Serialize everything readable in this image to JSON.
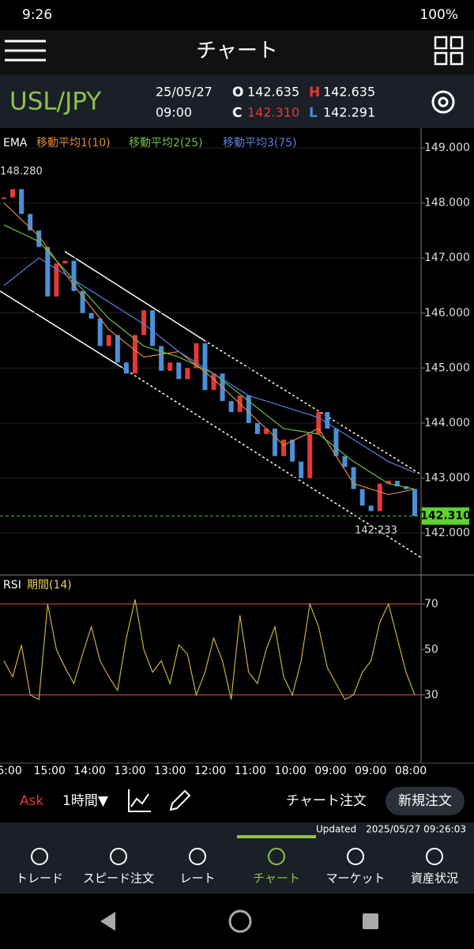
{
  "status_bar": {
    "time": "9:26",
    "battery": "100%"
  },
  "header": {
    "title": "チャート"
  },
  "quote": {
    "symbol": "USL/JPY",
    "date": "25/05/27",
    "time": "09:00",
    "open": {
      "label": "O",
      "value": "142.635"
    },
    "high": {
      "label": "H",
      "value": "142.635"
    },
    "close": {
      "label": "C",
      "value": "142.310"
    },
    "low": {
      "label": "L",
      "value": "142.291"
    }
  },
  "chart_data": [
    {
      "type": "candlestick",
      "title": "EMA",
      "up_color": "#e53935",
      "down_color": "#4a90d9",
      "closes": [
        148.1,
        148.25,
        147.8,
        147.5,
        147.2,
        146.3,
        146.9,
        146.95,
        146.4,
        146.0,
        145.9,
        145.4,
        145.6,
        145.1,
        144.9,
        145.6,
        146.05,
        145.4,
        144.95,
        145.1,
        144.8,
        145.0,
        145.45,
        144.6,
        144.9,
        144.4,
        144.2,
        144.5,
        144.0,
        143.8,
        143.9,
        143.4,
        143.7,
        143.3,
        143.0,
        143.8,
        144.2,
        143.9,
        143.4,
        143.2,
        142.8,
        142.5,
        142.4,
        142.9,
        142.95,
        142.85,
        142.8,
        142.31
      ],
      "series": [
        {
          "name": "移動平均1(10)",
          "color": "#e0893a",
          "x": [
            0,
            4,
            8,
            12,
            16,
            20,
            24,
            28,
            32,
            36,
            40,
            44,
            47
          ],
          "values": [
            148.0,
            147.4,
            146.5,
            145.7,
            145.2,
            145.3,
            144.8,
            144.2,
            143.6,
            143.9,
            142.9,
            142.7,
            142.8
          ]
        },
        {
          "name": "移動平均2(25)",
          "color": "#6cbf4a",
          "x": [
            0,
            4,
            8,
            12,
            16,
            20,
            24,
            28,
            32,
            36,
            40,
            44,
            47
          ],
          "values": [
            147.6,
            147.3,
            146.6,
            145.9,
            145.4,
            145.2,
            144.9,
            144.4,
            143.9,
            143.8,
            143.3,
            142.9,
            142.8
          ]
        },
        {
          "name": "移動平均3(75)",
          "color": "#5b7fe0",
          "x": [
            0,
            4,
            8,
            12,
            16,
            20,
            24,
            28,
            32,
            36,
            40,
            44,
            47
          ],
          "values": [
            146.5,
            147.0,
            146.6,
            146.2,
            145.8,
            145.3,
            144.9,
            144.5,
            144.3,
            144.1,
            143.7,
            143.3,
            143.1
          ]
        }
      ],
      "ylim": [
        141.24,
        149.36
      ],
      "yticks": [
        {
          "value": 142,
          "label": "142.000"
        },
        {
          "value": 143,
          "label": "143.000"
        },
        {
          "value": 144,
          "label": "144.000"
        },
        {
          "value": 145,
          "label": "145.000"
        },
        {
          "value": 146,
          "label": "146.000"
        },
        {
          "value": 147,
          "label": "147.000"
        },
        {
          "value": 148,
          "label": "148.000"
        },
        {
          "value": 149,
          "label": "149.000"
        }
      ],
      "high_label": {
        "value": 148.28,
        "label": "148.280"
      },
      "low_label": {
        "value": 142.233,
        "label": "142.233"
      },
      "last_price": {
        "value": 142.31,
        "label": "142.310"
      },
      "x_labels": [
        "6:00",
        "15:00",
        "14:00",
        "13:00",
        "13:00",
        "12:00",
        "11:00",
        "10:00",
        "09:00",
        "09:00",
        "08:00"
      ]
    },
    {
      "type": "line",
      "title": "RSI",
      "subtitle": "期間(14)",
      "color": "#c8b432",
      "values": [
        45,
        38,
        52,
        30,
        28,
        70,
        50,
        42,
        35,
        48,
        60,
        45,
        38,
        32,
        55,
        72,
        50,
        40,
        45,
        35,
        52,
        48,
        30,
        40,
        55,
        45,
        28,
        65,
        40,
        35,
        50,
        60,
        38,
        30,
        45,
        70,
        60,
        42,
        35,
        28,
        30,
        40,
        45,
        62,
        70,
        55,
        40,
        30
      ],
      "ylim": [
        0,
        82.5
      ],
      "yticks": [
        30,
        50,
        70
      ],
      "bands": [
        30,
        70
      ],
      "band_color": "#d9534f"
    }
  ],
  "toolbar": {
    "side": "Ask",
    "interval": "1時間▼",
    "chart_order": "チャート注文",
    "new_order": "新規注文"
  },
  "updated": {
    "label": "Updated",
    "timestamp": "2025/05/27  09:26:03"
  },
  "nav": {
    "items": [
      "トレード",
      "スピード注文",
      "レート",
      "チャート",
      "マーケット",
      "資産状況"
    ],
    "active": 3
  }
}
